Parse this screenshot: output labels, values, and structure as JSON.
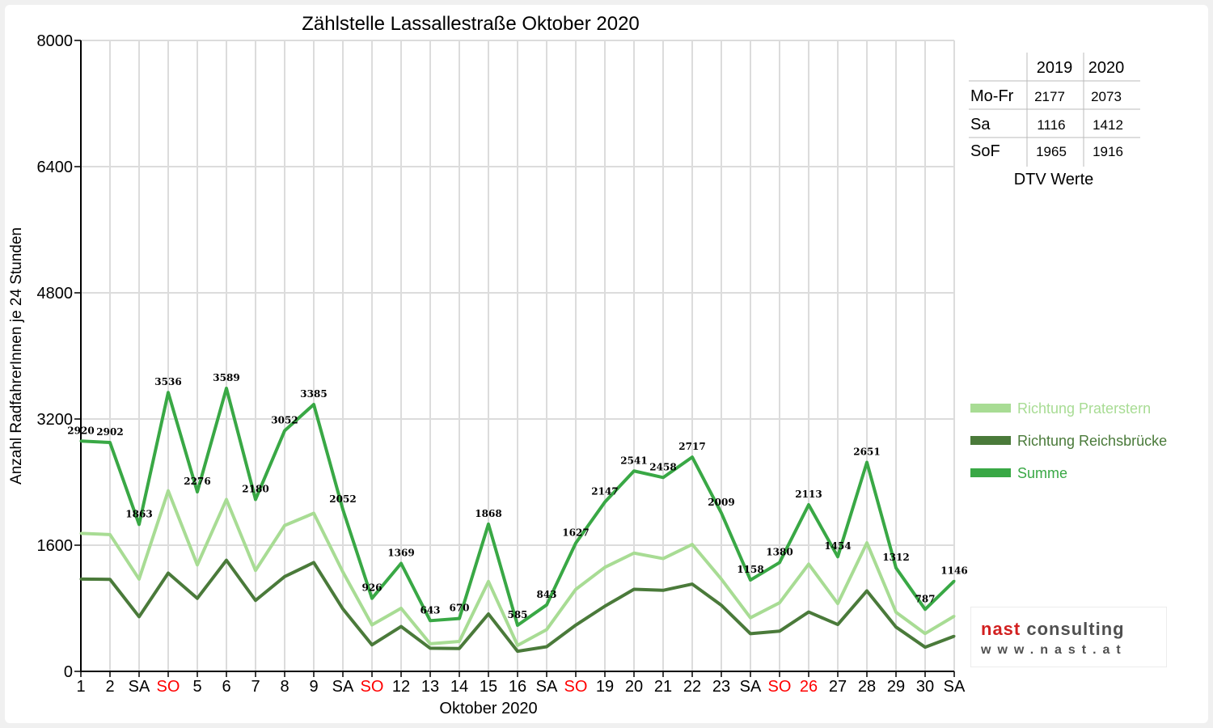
{
  "chart_data": {
    "type": "line",
    "title": "Zählstelle Lassallestraße Oktober 2020",
    "xlabel": "Oktober 2020",
    "ylabel": "Anzahl RadfahrerInnen je 24 Stunden",
    "ylim": [
      0,
      8000
    ],
    "yticks": [
      0,
      1600,
      3200,
      4800,
      6400,
      8000
    ],
    "grid": true,
    "legend_position": "right",
    "categories": [
      "1",
      "2",
      "SA",
      "SO",
      "5",
      "6",
      "7",
      "8",
      "9",
      "SA",
      "SO",
      "12",
      "13",
      "14",
      "15",
      "16",
      "SA",
      "SO",
      "19",
      "20",
      "21",
      "22",
      "23",
      "SA",
      "SO",
      "26",
      "27",
      "28",
      "29",
      "30",
      "SA"
    ],
    "red_categories": [
      3,
      10,
      17,
      24,
      25
    ],
    "series": [
      {
        "name": "Richtung Praterstern",
        "color": "#a8dc94",
        "values": [
          1750,
          1735,
          1170,
          2290,
          1350,
          2180,
          1280,
          1850,
          2005,
          1260,
          590,
          800,
          350,
          380,
          1140,
          330,
          530,
          1040,
          1320,
          1500,
          1430,
          1610,
          1170,
          680,
          870,
          1360,
          860,
          1630,
          750,
          480,
          700
        ]
      },
      {
        "name": "Richtung Reichsbrücke",
        "color": "#4a7a3a",
        "values": [
          1170,
          1167,
          693,
          1246,
          926,
          1409,
          900,
          1202,
          1380,
          792,
          336,
          569,
          293,
          290,
          728,
          255,
          313,
          587,
          827,
          1041,
          1028,
          1107,
          839,
          478,
          510,
          753,
          594,
          1021,
          562,
          307,
          446
        ]
      },
      {
        "name": "Summe",
        "color": "#39a845",
        "values": [
          2920,
          2902,
          1863,
          3536,
          2276,
          3589,
          2180,
          3052,
          3385,
          2052,
          926,
          1369,
          643,
          670,
          1868,
          585,
          843,
          1627,
          2147,
          2541,
          2458,
          2717,
          2009,
          1158,
          1380,
          2113,
          1454,
          2651,
          1312,
          787,
          1146
        ]
      }
    ],
    "data_labels": [
      2920,
      2902,
      1863,
      3536,
      2276,
      3589,
      2180,
      3052,
      3385,
      2052,
      926,
      1369,
      643,
      670,
      1868,
      585,
      843,
      1627,
      2147,
      2541,
      2458,
      2717,
      2009,
      1158,
      1380,
      2113,
      1454,
      2651,
      1312,
      787,
      1146
    ]
  },
  "dtv_table": {
    "headers": [
      "",
      "2019",
      "2020"
    ],
    "rows": [
      {
        "label": "Mo-Fr",
        "v2019": "2177",
        "v2020": "2073"
      },
      {
        "label": "Sa",
        "v2019": "1116",
        "v2020": "1412"
      },
      {
        "label": "SoF",
        "v2019": "1965",
        "v2020": "1916"
      }
    ],
    "caption": "DTV Werte"
  },
  "logo": {
    "text_nast": "nast",
    "text_consulting": "consulting",
    "url": "www.nast.at"
  },
  "colors": {
    "sunday_label": "#ff0000",
    "grid": "#dcdcdc",
    "axis": "#000000"
  }
}
